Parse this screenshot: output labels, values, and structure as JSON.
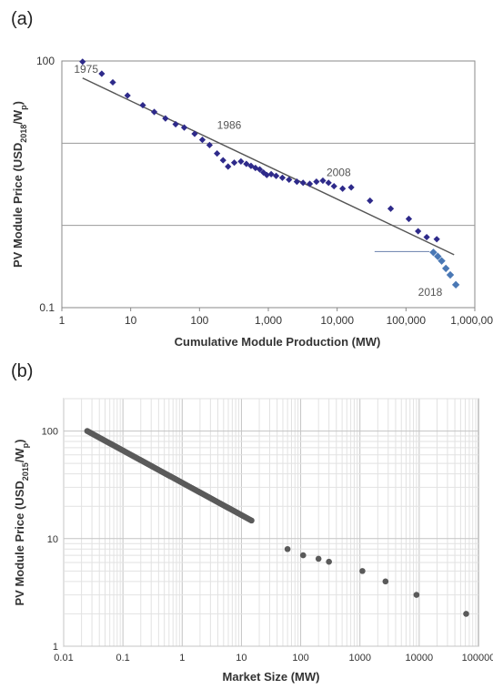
{
  "panel_labels": {
    "a": "(a)",
    "b": "(b)"
  },
  "chart_data": [
    {
      "type": "scatter",
      "panel": "a",
      "xscale": "log",
      "yscale": "log",
      "xlim": [
        1,
        1000000
      ],
      "ylim": [
        0.1,
        100
      ],
      "xticks": [
        {
          "value": 1,
          "label": "1"
        },
        {
          "value": 10,
          "label": "10"
        },
        {
          "value": 100,
          "label": "100"
        },
        {
          "value": 1000,
          "label": "1,000"
        },
        {
          "value": 10000,
          "label": "10,000"
        },
        {
          "value": 100000,
          "label": "100,000"
        },
        {
          "value": 1000000,
          "label": "1,000,000"
        }
      ],
      "yticks": [
        {
          "value": 100,
          "label": "100"
        },
        {
          "value": 0.1,
          "label": "0.1"
        }
      ],
      "ylabel_main": "PV Module Price (USD",
      "ylabel_sub": "2018",
      "ylabel_mid": "/W",
      "ylabel_sub2": "p",
      "ylabel_end": ")",
      "xlabel": "Cumulative Module Production (MW)",
      "grid_y": [
        10,
        1
      ],
      "marker_color": "#2e2a8a",
      "marker_color_recent": "#4a78b5",
      "points": [
        [
          2,
          98
        ],
        [
          3.8,
          70
        ],
        [
          5.5,
          55
        ],
        [
          9,
          38
        ],
        [
          15,
          29
        ],
        [
          22,
          24
        ],
        [
          32,
          20
        ],
        [
          45,
          17
        ],
        [
          60,
          15.5
        ],
        [
          85,
          13
        ],
        [
          110,
          11
        ],
        [
          140,
          9.5
        ],
        [
          180,
          7.5
        ],
        [
          220,
          6.2
        ],
        [
          260,
          5.2
        ],
        [
          320,
          5.8
        ],
        [
          400,
          6.0
        ],
        [
          480,
          5.6
        ],
        [
          560,
          5.3
        ],
        [
          650,
          5.0
        ],
        [
          750,
          4.8
        ],
        [
          850,
          4.4
        ],
        [
          950,
          4.1
        ],
        [
          1100,
          4.2
        ],
        [
          1300,
          4.0
        ],
        [
          1600,
          3.8
        ],
        [
          2000,
          3.6
        ],
        [
          2600,
          3.4
        ],
        [
          3200,
          3.3
        ],
        [
          4000,
          3.2
        ],
        [
          5000,
          3.4
        ],
        [
          6200,
          3.5
        ],
        [
          7500,
          3.3
        ],
        [
          9000,
          3.0
        ],
        [
          12000,
          2.8
        ],
        [
          16000,
          2.9
        ],
        [
          30000,
          2.0
        ],
        [
          60000,
          1.6
        ],
        [
          110000,
          1.2
        ],
        [
          150000,
          0.85
        ],
        [
          200000,
          0.72
        ],
        [
          280000,
          0.68
        ]
      ],
      "points_recent": [
        [
          250000,
          0.47
        ],
        [
          290000,
          0.42
        ],
        [
          330000,
          0.37
        ],
        [
          380000,
          0.3
        ],
        [
          440000,
          0.25
        ],
        [
          530000,
          0.19
        ]
      ],
      "trendline": [
        [
          2,
          62
        ],
        [
          500000,
          0.44
        ]
      ],
      "reference_segment": [
        [
          35000,
          0.48
        ],
        [
          220000,
          0.48
        ]
      ],
      "annotations": [
        {
          "text": "1975",
          "x": 1.5,
          "y": 72
        },
        {
          "text": "1986",
          "x": 180,
          "y": 15
        },
        {
          "text": "2008",
          "x": 7000,
          "y": 4.0
        },
        {
          "text": "2018",
          "x": 150000,
          "y": 0.14
        }
      ]
    },
    {
      "type": "scatter",
      "panel": "b",
      "xscale": "log",
      "yscale": "log",
      "xlim": [
        0.01,
        100000
      ],
      "ylim": [
        1,
        200
      ],
      "xticks": [
        {
          "value": 0.01,
          "label": "0.01"
        },
        {
          "value": 0.1,
          "label": "0.1"
        },
        {
          "value": 1,
          "label": "1"
        },
        {
          "value": 10,
          "label": "10"
        },
        {
          "value": 100,
          "label": "100"
        },
        {
          "value": 1000,
          "label": "1000"
        },
        {
          "value": 10000,
          "label": "10000"
        },
        {
          "value": 100000,
          "label": "100000"
        }
      ],
      "yticks": [
        {
          "value": 100,
          "label": "100"
        },
        {
          "value": 10,
          "label": "10"
        },
        {
          "value": 1,
          "label": "1"
        }
      ],
      "ylabel_main": "PV Module Price (USD",
      "ylabel_sub": "2015",
      "ylabel_mid": "/W",
      "ylabel_sub2": "p",
      "ylabel_end": ")",
      "xlabel": "Market Size (MW)",
      "grid": "minor-and-major",
      "marker_color": "#5a5a5a",
      "x_start": 0.025,
      "y_start": 100,
      "y_end": 2,
      "n_points": 100,
      "exponent": -0.3,
      "trailing_points": [
        [
          1100,
          5
        ],
        [
          2700,
          4
        ],
        [
          9000,
          3
        ],
        [
          62000,
          2
        ]
      ]
    }
  ]
}
